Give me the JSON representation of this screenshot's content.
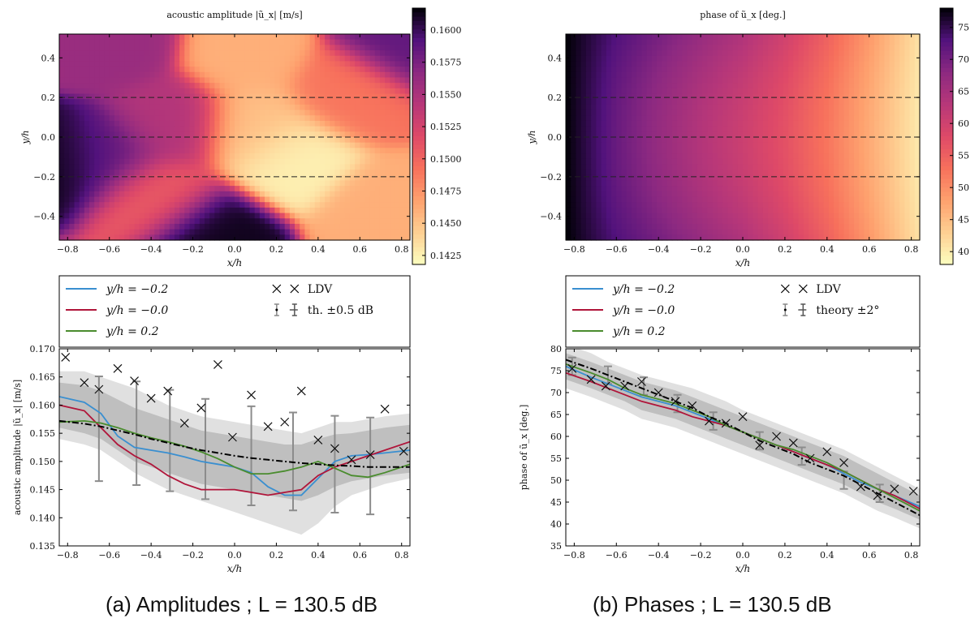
{
  "captions": [
    "(a)  Amplitudes ; L = 130.5 dB",
    "(b) Phases ; L = 130.5 dB"
  ],
  "chart_data": [
    {
      "type": "heatmap",
      "title": "acoustic amplitude |ũ_x| [m/s]",
      "xlabel": "x/h",
      "ylabel": "y/h",
      "xlim": [
        -0.84,
        0.84
      ],
      "ylim": [
        -0.52,
        0.52
      ],
      "xticks": [
        "−0.8",
        "−0.6",
        "−0.4",
        "−0.2",
        "0.0",
        "0.2",
        "0.4",
        "0.6",
        "0.8"
      ],
      "yticks": [
        "−0.4",
        "−0.2",
        "0.0",
        "0.2",
        "0.4"
      ],
      "dashed_lines_y": [
        -0.2,
        0.0,
        0.2
      ],
      "colorbar": {
        "min": 0.1418,
        "max": 0.1617,
        "ticks": [
          "0.1425",
          "0.1450",
          "0.1475",
          "0.1500",
          "0.1525",
          "0.1550",
          "0.1575",
          "0.1600"
        ],
        "colormap": "magma_r"
      },
      "grid_shape": [
        38,
        70
      ],
      "features": [
        {
          "x": -0.82,
          "y": -0.12,
          "value": 0.1615
        },
        {
          "x": -0.62,
          "y": -0.1,
          "value": 0.1582
        },
        {
          "x": -0.13,
          "y": -0.5,
          "value": 0.1612
        },
        {
          "x": -0.58,
          "y": 0.48,
          "value": 0.156
        },
        {
          "x": 0.8,
          "y": 0.48,
          "value": 0.1585
        },
        {
          "x": -0.3,
          "y": 0.07,
          "value": 0.1545
        },
        {
          "x": 0.28,
          "y": -0.1,
          "value": 0.1425
        },
        {
          "x": 0.1,
          "y": 0.05,
          "value": 0.1452
        },
        {
          "x": 0.05,
          "y": 0.42,
          "value": 0.146
        },
        {
          "x": 0.72,
          "y": -0.37,
          "value": 0.146
        },
        {
          "x": -0.38,
          "y": -0.3,
          "value": 0.1505
        },
        {
          "x": 0.55,
          "y": 0.22,
          "value": 0.149
        }
      ]
    },
    {
      "type": "heatmap",
      "title": "phase of ũ_x [deg.]",
      "xlabel": "x/h",
      "ylabel": "y/h",
      "xlim": [
        -0.84,
        0.84
      ],
      "ylim": [
        -0.52,
        0.52
      ],
      "xticks": [
        "−0.8",
        "−0.6",
        "−0.4",
        "−0.2",
        "0.0",
        "0.2",
        "0.4",
        "0.6",
        "0.8"
      ],
      "yticks": [
        "−0.4",
        "−0.2",
        "0.0",
        "0.2",
        "0.4"
      ],
      "dashed_lines_y": [
        -0.2,
        0.0,
        0.2
      ],
      "colorbar": {
        "min": 38,
        "max": 78,
        "ticks": [
          "40",
          "45",
          "50",
          "55",
          "60",
          "65",
          "70",
          "75"
        ],
        "colormap": "magma_r"
      },
      "grid_shape": [
        38,
        70
      ],
      "profile": {
        "x": [
          -0.84,
          -0.6,
          -0.4,
          -0.2,
          0.0,
          0.2,
          0.4,
          0.6,
          0.84
        ],
        "center": [
          78,
          71,
          67,
          63.5,
          60.5,
          57,
          52.5,
          47,
          40
        ],
        "edge_offset": [
          0,
          2,
          3,
          3.5,
          3.5,
          3,
          2.5,
          2,
          1
        ]
      }
    },
    {
      "type": "line",
      "xlabel": "x/h",
      "ylabel": "acoustic amplitude |ũ_x| [m/s]",
      "xlim": [
        -0.84,
        0.84
      ],
      "ylim": [
        0.135,
        0.17
      ],
      "xticks": [
        "−0.8",
        "−0.6",
        "−0.4",
        "−0.2",
        "0.0",
        "0.2",
        "0.4",
        "0.6",
        "0.8"
      ],
      "yticks": [
        "0.135",
        "0.140",
        "0.145",
        "0.150",
        "0.155",
        "0.160",
        "0.165",
        "0.170"
      ],
      "legend": {
        "entries": [
          "y/h = −0.2",
          "y/h = −0.0",
          "y/h = 0.2",
          "LDV",
          "th. ±0.5 dB"
        ],
        "placement": "above"
      },
      "x": [
        -0.84,
        -0.72,
        -0.64,
        -0.56,
        -0.48,
        -0.4,
        -0.32,
        -0.24,
        -0.16,
        -0.08,
        0.0,
        0.08,
        0.16,
        0.24,
        0.32,
        0.4,
        0.48,
        0.56,
        0.64,
        0.72,
        0.84
      ],
      "series": [
        {
          "name": "y/h = −0.2",
          "color": "#3a8fd0",
          "values": [
            0.1615,
            0.1605,
            0.1585,
            0.1545,
            0.1525,
            0.152,
            0.1515,
            0.1508,
            0.15,
            0.1495,
            0.149,
            0.148,
            0.1455,
            0.144,
            0.144,
            0.147,
            0.15,
            0.151,
            0.1512,
            0.1515,
            0.152
          ]
        },
        {
          "name": "y/h = −0.0",
          "color": "#b0153a",
          "values": [
            0.16,
            0.159,
            0.156,
            0.153,
            0.151,
            0.1495,
            0.1475,
            0.146,
            0.145,
            0.145,
            0.145,
            0.1445,
            0.144,
            0.1445,
            0.145,
            0.1475,
            0.149,
            0.15,
            0.151,
            0.152,
            0.1535
          ]
        },
        {
          "name": "y/h = 0.2",
          "color": "#4a8c2e",
          "values": [
            0.157,
            0.1572,
            0.1568,
            0.156,
            0.155,
            0.1542,
            0.1535,
            0.1527,
            0.1517,
            0.1505,
            0.149,
            0.1478,
            0.1478,
            0.1483,
            0.149,
            0.15,
            0.1488,
            0.1475,
            0.1472,
            0.148,
            0.1495
          ]
        },
        {
          "name": "theory",
          "style": "dash-dot",
          "color": "#000000",
          "values": [
            0.1572,
            0.1567,
            0.1562,
            0.1555,
            0.1548,
            0.154,
            0.1533,
            0.1526,
            0.152,
            0.1515,
            0.151,
            0.1506,
            0.1503,
            0.15,
            0.1497,
            0.1495,
            0.1493,
            0.1492,
            0.149,
            0.149,
            0.149
          ]
        }
      ],
      "bands": [
        {
          "lower": [
            0.154,
            0.153,
            0.152,
            0.15,
            0.148,
            0.1465,
            0.145,
            0.144,
            0.143,
            0.142,
            0.141,
            0.14,
            0.139,
            0.138,
            0.137,
            0.139,
            0.142,
            0.144,
            0.145,
            0.146,
            0.147
          ],
          "upper": [
            0.166,
            0.166,
            0.165,
            0.164,
            0.163,
            0.1615,
            0.16,
            0.159,
            0.158,
            0.1575,
            0.157,
            0.1565,
            0.156,
            0.1555,
            0.155,
            0.156,
            0.157,
            0.157,
            0.1575,
            0.158,
            0.1585
          ]
        },
        {
          "lower": [
            0.156,
            0.155,
            0.154,
            0.152,
            0.15,
            0.149,
            0.148,
            0.147,
            0.146,
            0.1455,
            0.145,
            0.1445,
            0.144,
            0.1435,
            0.143,
            0.144,
            0.1455,
            0.1465,
            0.147,
            0.1475,
            0.148
          ],
          "upper": [
            0.164,
            0.1635,
            0.1625,
            0.161,
            0.1595,
            0.1585,
            0.1575,
            0.1565,
            0.1555,
            0.155,
            0.1545,
            0.154,
            0.1535,
            0.153,
            0.153,
            0.154,
            0.1548,
            0.155,
            0.1555,
            0.156,
            0.1565
          ]
        }
      ],
      "ldv": {
        "x": [
          -0.81,
          -0.72,
          -0.65,
          -0.56,
          -0.48,
          -0.4,
          -0.32,
          -0.24,
          -0.16,
          -0.08,
          -0.01,
          0.08,
          0.16,
          0.24,
          0.32,
          0.4,
          0.48,
          0.56,
          0.65,
          0.72,
          0.81
        ],
        "y": [
          0.1685,
          0.164,
          0.1628,
          0.1665,
          0.1643,
          0.1612,
          0.1625,
          0.1568,
          0.1595,
          0.1672,
          0.1543,
          0.1618,
          0.1562,
          0.157,
          0.1625,
          0.1538,
          0.1523,
          0.1503,
          0.1512,
          0.1593,
          0.1518
        ]
      },
      "errorbars": {
        "x": [
          -0.65,
          -0.47,
          -0.31,
          -0.14,
          0.08,
          0.28,
          0.48,
          0.65
        ],
        "y": [
          0.1558,
          0.155,
          0.1537,
          0.1522,
          0.151,
          0.15,
          0.1495,
          0.1492
        ],
        "err": [
          0.0093,
          0.0092,
          0.009,
          0.0089,
          0.0088,
          0.0087,
          0.0086,
          0.0086
        ]
      }
    },
    {
      "type": "line",
      "xlabel": "x/h",
      "ylabel": "phase of ũ_x [deg.]",
      "xlim": [
        -0.84,
        0.84
      ],
      "ylim": [
        35,
        80
      ],
      "xticks": [
        "−0.8",
        "−0.6",
        "−0.4",
        "−0.2",
        "0.0",
        "0.2",
        "0.4",
        "0.6",
        "0.8"
      ],
      "yticks": [
        "35",
        "40",
        "45",
        "50",
        "55",
        "60",
        "65",
        "70",
        "75",
        "80"
      ],
      "legend": {
        "entries": [
          "y/h = −0.2",
          "y/h = −0.0",
          "y/h = 0.2",
          "LDV",
          "theory ±2°"
        ],
        "placement": "above"
      },
      "x": [
        -0.84,
        -0.72,
        -0.64,
        -0.56,
        -0.48,
        -0.4,
        -0.32,
        -0.24,
        -0.16,
        -0.08,
        0.0,
        0.08,
        0.16,
        0.24,
        0.32,
        0.4,
        0.48,
        0.56,
        0.64,
        0.72,
        0.84
      ],
      "series": [
        {
          "name": "y/h = −0.2",
          "color": "#3a8fd0",
          "values": [
            76.0,
            73.5,
            72.0,
            70.5,
            69.0,
            68.0,
            67.0,
            65.5,
            64.0,
            62.5,
            61.0,
            59.5,
            58.0,
            56.5,
            55.0,
            53.5,
            51.5,
            49.5,
            48.0,
            46.5,
            44.0
          ]
        },
        {
          "name": "y/h = −0.0",
          "color": "#b0153a",
          "values": [
            74.5,
            72.5,
            71.0,
            69.5,
            68.0,
            67.0,
            66.0,
            64.5,
            63.5,
            62.5,
            61.0,
            59.5,
            58.0,
            56.5,
            55.0,
            53.5,
            52.0,
            50.0,
            48.0,
            46.5,
            43.5
          ]
        },
        {
          "name": "y/h = 0.2",
          "color": "#4a8c2e",
          "values": [
            76.5,
            74.5,
            73.0,
            71.0,
            69.5,
            68.5,
            67.5,
            66.0,
            64.5,
            62.5,
            61.0,
            59.5,
            58.0,
            57.0,
            55.5,
            54.0,
            52.0,
            50.0,
            48.0,
            46.0,
            43.0
          ]
        },
        {
          "name": "theory",
          "style": "dash-dot",
          "color": "#000000",
          "values": [
            77.5,
            75.5,
            74.0,
            72.5,
            71.0,
            69.5,
            68.0,
            66.5,
            64.5,
            63.0,
            61.0,
            59.0,
            57.5,
            56.0,
            54.0,
            52.5,
            51.0,
            49.0,
            47.0,
            45.0,
            42.0
          ]
        }
      ],
      "bands": [
        {
          "lower": [
            71.0,
            69.0,
            67.5,
            66.0,
            64.0,
            63.0,
            62.0,
            60.5,
            59.0,
            57.5,
            56.0,
            54.5,
            53.0,
            51.5,
            50.0,
            48.5,
            47.0,
            45.0,
            43.0,
            41.5,
            39.0
          ],
          "upper": [
            81.0,
            79.0,
            77.0,
            75.5,
            74.0,
            73.0,
            72.0,
            71.0,
            69.5,
            68.0,
            66.0,
            64.5,
            63.0,
            61.5,
            60.0,
            58.5,
            57.0,
            55.0,
            53.0,
            51.0,
            48.0
          ]
        },
        {
          "lower": [
            73.0,
            71.0,
            69.5,
            68.0,
            66.0,
            65.0,
            64.0,
            62.5,
            61.0,
            59.5,
            58.0,
            56.5,
            55.0,
            53.5,
            52.0,
            50.5,
            49.0,
            47.0,
            45.0,
            43.5,
            41.0
          ],
          "upper": [
            79.0,
            77.0,
            75.5,
            74.0,
            72.5,
            71.5,
            70.5,
            69.0,
            67.5,
            66.0,
            64.5,
            63.0,
            61.5,
            60.0,
            58.5,
            57.0,
            55.5,
            53.5,
            51.5,
            49.5,
            46.5
          ]
        }
      ],
      "ldv": {
        "x": [
          -0.81,
          -0.72,
          -0.65,
          -0.56,
          -0.48,
          -0.4,
          -0.32,
          -0.24,
          -0.16,
          -0.08,
          0.0,
          0.08,
          0.16,
          0.24,
          0.32,
          0.4,
          0.48,
          0.56,
          0.64,
          0.72,
          0.81
        ],
        "y": [
          75.5,
          73.0,
          71.5,
          71.5,
          72.5,
          70.0,
          68.0,
          67.0,
          63.5,
          63.0,
          64.5,
          58.0,
          60.0,
          58.5,
          55.0,
          56.5,
          54.0,
          48.5,
          46.5,
          48.0,
          47.5
        ]
      },
      "errorbars": {
        "x": [
          -0.81,
          -0.64,
          -0.47,
          -0.31,
          -0.14,
          0.08,
          0.28,
          0.48,
          0.65
        ],
        "y": [
          76.0,
          74.0,
          71.5,
          67.5,
          63.5,
          59.0,
          55.5,
          50.0,
          47.0
        ],
        "err": [
          2.0,
          2.0,
          2.0,
          2.0,
          2.0,
          2.0,
          2.0,
          2.0,
          2.0
        ]
      }
    }
  ]
}
